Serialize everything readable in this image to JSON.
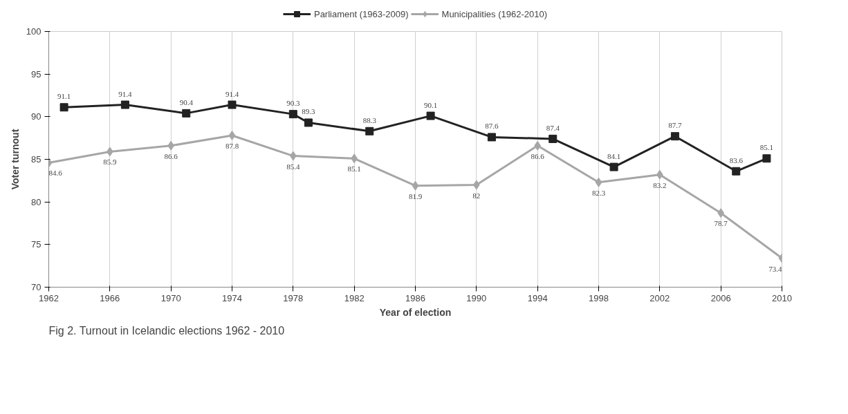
{
  "chart_data": {
    "type": "line",
    "xlabel": "Year of election",
    "ylabel": "Voter turnout",
    "annotations": [
      "Fig 2. Turnout in Icelandic elections 1962 - 2010"
    ],
    "xlim": [
      1962,
      2010
    ],
    "xticks": [
      1962,
      1966,
      1970,
      1974,
      1978,
      1982,
      1986,
      1990,
      1994,
      1998,
      2002,
      2006,
      2010
    ],
    "ylim": [
      70,
      100
    ],
    "yticks": [
      70,
      75,
      80,
      85,
      90,
      95,
      100
    ],
    "grid": "x",
    "legend": "top",
    "data_labels": true,
    "line_style": "solid",
    "series": [
      {
        "name": "Parliament (1963-2009)",
        "color": "#222222",
        "marker": "square",
        "x": [
          1963,
          1967,
          1971,
          1974,
          1978,
          1979,
          1983,
          1987,
          1991,
          1995,
          1999,
          2003,
          2007,
          2009
        ],
        "values": [
          91.1,
          91.4,
          90.4,
          91.4,
          90.3,
          89.3,
          88.3,
          90.1,
          87.6,
          87.4,
          84.1,
          87.7,
          83.6,
          85.1
        ]
      },
      {
        "name": "Municipalities (1962-2010)",
        "color": "#a6a6a6",
        "marker": "diamond",
        "x": [
          1962,
          1966,
          1970,
          1974,
          1978,
          1982,
          1986,
          1990,
          1994,
          1998,
          2002,
          2006,
          2010
        ],
        "values": [
          84.6,
          85.9,
          86.6,
          87.8,
          85.4,
          85.1,
          81.9,
          82,
          86.6,
          82.3,
          83.2,
          78.7,
          73.4
        ]
      }
    ]
  }
}
